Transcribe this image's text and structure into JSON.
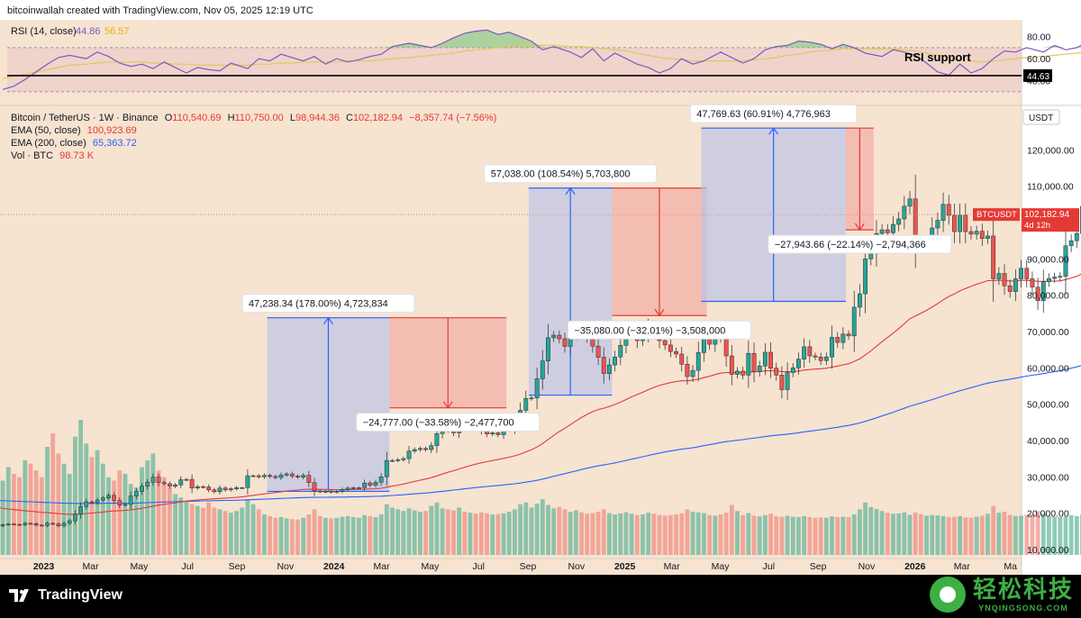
{
  "header": {
    "attribution": "bitcoinwallah created with TradingView.com, Nov 05, 2025 12:19 UTC"
  },
  "rsi": {
    "label": "RSI (14, close)",
    "value": "44.86",
    "ma_value": "56.57",
    "annotation": "RSI support",
    "support_level": 44.63,
    "support_label": "44.63",
    "axis_ticks": [
      "80.00",
      "60.00",
      "40.00"
    ],
    "overbought": 70,
    "oversold": 30,
    "values": [
      32,
      35,
      41,
      48,
      55,
      61,
      63,
      60,
      66,
      62,
      56,
      53,
      55,
      51,
      57,
      52,
      47,
      52,
      50,
      49,
      56,
      51,
      60,
      58,
      64,
      61,
      58,
      62,
      55,
      60,
      57,
      59,
      62,
      64,
      71,
      74,
      72,
      70,
      74,
      79,
      83,
      85,
      86,
      82,
      84,
      80,
      76,
      68,
      71,
      66,
      61,
      69,
      58,
      65,
      60,
      55,
      52,
      47,
      51,
      60,
      55,
      58,
      66,
      61,
      56,
      60,
      68,
      71,
      72,
      76,
      75,
      73,
      69,
      73,
      70,
      65,
      62,
      68,
      66,
      63,
      56,
      48,
      45,
      55,
      47,
      51,
      60,
      67,
      66,
      70,
      66,
      72,
      68,
      70,
      75,
      72,
      69,
      71,
      73,
      68,
      64,
      70,
      67,
      62,
      64,
      59,
      61,
      60,
      52,
      48,
      45
    ],
    "ma_values": [
      42,
      44,
      46,
      48,
      50,
      52,
      54,
      55,
      56,
      57,
      57,
      57,
      57,
      56,
      56,
      55,
      55,
      54,
      54,
      54,
      54,
      54,
      55,
      55,
      56,
      56,
      57,
      57,
      57,
      57,
      58,
      58,
      58,
      59,
      60,
      61,
      62,
      63,
      64,
      65,
      67,
      68,
      69,
      70,
      71,
      72,
      72,
      72,
      72,
      71,
      71,
      70,
      69,
      68,
      67,
      65,
      63,
      61,
      60,
      59,
      58,
      58,
      58,
      58,
      58,
      59,
      60,
      61,
      63,
      64,
      66,
      67,
      68,
      69,
      69,
      69,
      69,
      69,
      68,
      67,
      65,
      63,
      61,
      59,
      58,
      57,
      58,
      59,
      60,
      61,
      62,
      63,
      64,
      65,
      66,
      67,
      67,
      68,
      68,
      68,
      68,
      67,
      67,
      66,
      65,
      64,
      63,
      62,
      60,
      58,
      57
    ]
  },
  "legend": {
    "symbol_line": "Bitcoin / TetherUS · 1W · Binance",
    "o_label": "O",
    "o_value": "110,540.69",
    "h_label": "H",
    "h_value": "110,750.00",
    "l_label": "L",
    "l_value": "98,944.36",
    "c_label": "C",
    "c_value": "102,182.94",
    "change": "−8,357.74 (−7.56%)",
    "ema50_label": "EMA (50, close)",
    "ema50_value": "100,923.69",
    "ema200_label": "EMA (200, close)",
    "ema200_value": "65,363.72",
    "vol_label": "Vol · BTC",
    "vol_value": "98.73 K"
  },
  "axis": {
    "currency": "USDT",
    "price_tag_symbol": "BTCUSDT",
    "price_tag_value": "102,182.94",
    "price_tag_countdown": "4d 12h"
  },
  "chart_data": {
    "type": "candlestick",
    "title": "Bitcoin / TetherUS · 1W · Binance",
    "y_ticks": [
      10000,
      20000,
      30000,
      40000,
      50000,
      60000,
      70000,
      80000,
      90000,
      100000,
      110000,
      120000
    ],
    "y_tick_labels": [
      "10,000.00",
      "20,000.00",
      "30,000.00",
      "40,000.00",
      "50,000.00",
      "60,000.00",
      "70,000.00",
      "80,000.00",
      "90,000.00",
      "100,000.00",
      "110,000.00",
      "120,000.00"
    ],
    "ylim": [
      8000,
      132000
    ],
    "x_ticks": [
      {
        "label": "2023",
        "date": "2023-01-01",
        "bold": true
      },
      {
        "label": "Mar",
        "date": "2023-03-01"
      },
      {
        "label": "May",
        "date": "2023-05-01"
      },
      {
        "label": "Jul",
        "date": "2023-07-01"
      },
      {
        "label": "Sep",
        "date": "2023-09-01"
      },
      {
        "label": "Nov",
        "date": "2023-11-01"
      },
      {
        "label": "2024",
        "date": "2024-01-01",
        "bold": true
      },
      {
        "label": "Mar",
        "date": "2024-03-01"
      },
      {
        "label": "May",
        "date": "2024-05-01"
      },
      {
        "label": "Jul",
        "date": "2024-07-01"
      },
      {
        "label": "Sep",
        "date": "2024-09-01"
      },
      {
        "label": "Nov",
        "date": "2024-11-01"
      },
      {
        "label": "2025",
        "date": "2025-01-01",
        "bold": true
      },
      {
        "label": "Mar",
        "date": "2025-03-01"
      },
      {
        "label": "May",
        "date": "2025-05-01"
      },
      {
        "label": "Jul",
        "date": "2025-07-01"
      },
      {
        "label": "Sep",
        "date": "2025-09-01"
      },
      {
        "label": "Nov",
        "date": "2025-11-01"
      },
      {
        "label": "2026",
        "date": "2026-01-01",
        "bold": true
      },
      {
        "label": "Mar",
        "date": "2026-03-01"
      },
      {
        "label": "Ma",
        "date": "2026-05-01"
      }
    ],
    "xlim": [
      "2022-11-07",
      "2026-05-15"
    ],
    "first_week": "2022-11-07",
    "candle_close": [
      16800,
      17000,
      16900,
      16800,
      17200,
      17100,
      16700,
      16600,
      17200,
      17000,
      16500,
      17200,
      17900,
      19700,
      21800,
      23100,
      22900,
      23600,
      24200,
      24900,
      23500,
      22200,
      22400,
      24700,
      26000,
      27400,
      28500,
      29900,
      28400,
      28100,
      27400,
      27800,
      29200,
      29300,
      26900,
      27300,
      27200,
      26400,
      25900,
      26900,
      26400,
      26700,
      27000,
      27000,
      30300,
      30300,
      30000,
      30400,
      30100,
      29800,
      30500,
      30800,
      30200,
      29900,
      30400,
      28400,
      26100,
      25900,
      26000,
      25800,
      26000,
      26500,
      26900,
      27000,
      27000,
      28300,
      27700,
      28500,
      30000,
      34500,
      34500,
      34700,
      35000,
      37100,
      37500,
      37800,
      37500,
      38600,
      41900,
      43800,
      43000,
      42100,
      44000,
      43800,
      44100,
      44000,
      42700,
      41800,
      42100,
      41600,
      43000,
      43100,
      44800,
      48300,
      51600,
      51700,
      57000,
      61900,
      68300,
      69000,
      68000,
      65900,
      69000,
      70100,
      69600,
      68300,
      66000,
      62900,
      58400,
      60800,
      63000,
      66200,
      69200,
      70400,
      67500,
      69000,
      71500,
      70400,
      67500,
      66300,
      64500,
      63800,
      61000,
      57600,
      59300,
      64200,
      68000,
      66500,
      69500,
      68300,
      63300,
      58200,
      59100,
      58000,
      64000,
      59000,
      60500,
      64300,
      59900,
      58000,
      54000,
      58700,
      60000,
      62400,
      65800,
      63300,
      63000,
      62000,
      63000,
      68400,
      67000,
      69300,
      68800,
      76700,
      80400,
      90000,
      91500,
      97000,
      98000,
      97200,
      99500,
      101000,
      104500,
      106500,
      94200,
      93700,
      94600,
      98500,
      100600,
      105000,
      102000,
      97500,
      102000,
      97500,
      96800,
      97600,
      95600,
      96300,
      84500,
      86000,
      82600,
      81000,
      84500,
      87400,
      84500,
      82200,
      78500,
      83700,
      84600,
      85000,
      85200,
      93600,
      95000,
      97000,
      104400,
      105800,
      103200,
      104000,
      107000,
      108500,
      105500,
      104200,
      105800,
      105000,
      109200,
      119000,
      117500,
      118000,
      119500,
      117000,
      115000,
      118000,
      116500,
      113500,
      114200,
      111400,
      108500,
      109000,
      112000,
      115000,
      116000,
      115600,
      112200,
      109700,
      122500,
      111300,
      110300,
      110600,
      102200
    ],
    "volume": [
      22000,
      26000,
      24000,
      23000,
      28000,
      27000,
      25000,
      23000,
      32000,
      36000,
      30000,
      27000,
      24000,
      35000,
      40000,
      33000,
      29000,
      31000,
      27000,
      23000,
      22000,
      25000,
      24000,
      21000,
      20000,
      26000,
      28000,
      30000,
      25000,
      23000,
      20000,
      18000,
      17000,
      16000,
      15000,
      14500,
      14000,
      15500,
      14000,
      13500,
      13000,
      12500,
      13000,
      14000,
      16500,
      15000,
      13500,
      12000,
      11500,
      11000,
      11200,
      10800,
      10600,
      10500,
      11000,
      12000,
      13500,
      11500,
      11000,
      10800,
      11000,
      11300,
      11500,
      11200,
      11000,
      11800,
      11500,
      11200,
      12000,
      15000,
      14000,
      13500,
      13000,
      13800,
      13200,
      12800,
      13000,
      14500,
      15500,
      13800,
      13500,
      13200,
      14000,
      12800,
      12500,
      12200,
      12600,
      12300,
      12000,
      12100,
      12300,
      12800,
      13500,
      15000,
      15500,
      14000,
      15200,
      16500,
      14800,
      13800,
      14200,
      13500,
      12800,
      13200,
      12600,
      12200,
      12400,
      12800,
      13500,
      12400,
      12000,
      12300,
      12600,
      12200,
      11800,
      12000,
      12500,
      12200,
      11800,
      11600,
      11800,
      12000,
      12300,
      13500,
      12800,
      12600,
      12400,
      11800,
      11600,
      12000,
      12500,
      14800,
      13000,
      11800,
      12400,
      11600,
      11400,
      11800,
      12200,
      11500,
      11300,
      11600,
      11300,
      11200,
      11500,
      11200,
      11000,
      11100,
      11000,
      11400,
      11200,
      11300,
      11200,
      12000,
      13500,
      15500,
      14200,
      13600,
      13000,
      12500,
      12200,
      12300,
      12600,
      11900,
      12500,
      12000,
      11600,
      11800,
      11700,
      11500,
      11200,
      11300,
      11500,
      11100,
      11000,
      11300,
      11600,
      12200,
      14500,
      12500,
      12800,
      11800,
      11500,
      11600,
      11900,
      12000,
      13000,
      12200,
      11500,
      11300,
      11200,
      11400,
      11800,
      11500,
      11900,
      11300,
      11100,
      11200,
      11000,
      11100,
      11000,
      10900,
      11000,
      11000,
      11500,
      12000,
      11500,
      11200,
      11100,
      11300,
      11200,
      11000,
      11400,
      11300,
      11500,
      11200,
      11000,
      11100,
      11300,
      11100,
      11000,
      10900,
      11200,
      11300,
      11200,
      11100,
      11000
    ],
    "ema50_start": 21500,
    "ema200_start": 23500,
    "annotations": [
      {
        "kind": "gain",
        "from": "2023-10-09",
        "to": "2024-03-11",
        "low": 26000,
        "high": 73800,
        "label": "47,238.34 (178.00%) 4,723,834"
      },
      {
        "kind": "loss",
        "from": "2024-03-11",
        "to": "2024-08-05",
        "low": 49000,
        "high": 73800,
        "label": "−24,777.00 (−33.58%) −2,477,700"
      },
      {
        "kind": "gain",
        "from": "2024-09-02",
        "to": "2024-12-16",
        "low": 52500,
        "high": 109500,
        "label": "57,038.00 (108.54%) 5,703,800"
      },
      {
        "kind": "loss",
        "from": "2024-12-16",
        "to": "2025-04-14",
        "low": 74400,
        "high": 109500,
        "label": "−35,080.00 (−32.01%) −3,508,000"
      },
      {
        "kind": "gain",
        "from": "2025-04-07",
        "to": "2025-10-06",
        "low": 78300,
        "high": 126000,
        "label": "47,769.63 (60.91%) 4,776,963"
      },
      {
        "kind": "loss",
        "from": "2025-10-06",
        "to": "2025-11-10",
        "low": 98000,
        "high": 126000,
        "label": "−27,943.66 (−22.14%) −2,794,366"
      }
    ]
  }
}
